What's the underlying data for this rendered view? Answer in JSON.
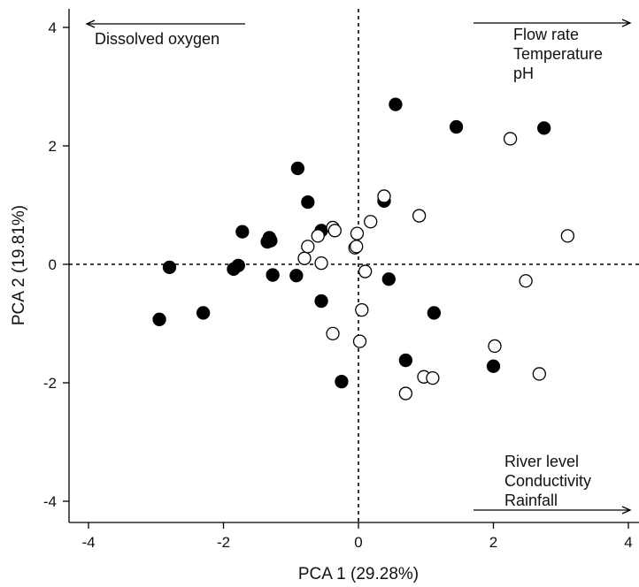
{
  "chart_data": {
    "type": "scatter",
    "title": "",
    "xlabel": "PCA 1 (29.28%)",
    "ylabel": "PCA 2 (19.81%)",
    "xlim": [
      -4.3,
      4.3
    ],
    "ylim": [
      -4.2,
      4.2
    ],
    "x_ticks": [
      -4,
      -2,
      0,
      2,
      4
    ],
    "y_ticks": [
      -4,
      -2,
      0,
      2,
      4
    ],
    "x_tick_labels": [
      "-4",
      "-2",
      "0",
      "2",
      "4"
    ],
    "y_tick_labels": [
      "-4",
      "-2",
      "0",
      "2",
      "4"
    ],
    "reference_lines": {
      "x": 0,
      "y": 0,
      "style": "dashed"
    },
    "grid": false,
    "series": [
      {
        "marker": "filled-circle",
        "color": "#000000",
        "points": [
          [
            0.55,
            2.7
          ],
          [
            1.45,
            2.32
          ],
          [
            2.75,
            2.3
          ],
          [
            -0.9,
            1.62
          ],
          [
            -0.75,
            1.05
          ],
          [
            0.38,
            1.07
          ],
          [
            -1.72,
            0.55
          ],
          [
            -1.32,
            0.45
          ],
          [
            -1.35,
            0.38
          ],
          [
            -1.3,
            0.4
          ],
          [
            -0.55,
            0.57
          ],
          [
            -2.8,
            -0.05
          ],
          [
            -1.85,
            -0.08
          ],
          [
            -1.78,
            -0.02
          ],
          [
            -1.27,
            -0.18
          ],
          [
            -0.92,
            -0.19
          ],
          [
            0.45,
            -0.25
          ],
          [
            -2.95,
            -0.93
          ],
          [
            -2.3,
            -0.82
          ],
          [
            -0.55,
            -0.62
          ],
          [
            1.12,
            -0.82
          ],
          [
            0.7,
            -1.62
          ],
          [
            2.0,
            -1.72
          ],
          [
            -0.25,
            -1.98
          ]
        ]
      },
      {
        "marker": "open-circle",
        "color": "#000000",
        "points": [
          [
            2.25,
            2.12
          ],
          [
            0.38,
            1.15
          ],
          [
            0.9,
            0.82
          ],
          [
            -0.38,
            0.62
          ],
          [
            -0.35,
            0.57
          ],
          [
            -0.6,
            0.48
          ],
          [
            -0.75,
            0.3
          ],
          [
            -0.02,
            0.52
          ],
          [
            0.18,
            0.72
          ],
          [
            -0.05,
            0.28
          ],
          [
            -0.03,
            0.3
          ],
          [
            3.1,
            0.48
          ],
          [
            -0.8,
            0.1
          ],
          [
            -0.55,
            0.02
          ],
          [
            0.1,
            -0.12
          ],
          [
            2.48,
            -0.28
          ],
          [
            0.05,
            -0.77
          ],
          [
            -0.38,
            -1.17
          ],
          [
            0.02,
            -1.3
          ],
          [
            2.02,
            -1.38
          ],
          [
            0.97,
            -1.9
          ],
          [
            1.1,
            -1.92
          ],
          [
            2.68,
            -1.85
          ],
          [
            0.7,
            -2.18
          ]
        ]
      }
    ]
  },
  "annotations": {
    "top_left": [
      "Dissolved oxygen"
    ],
    "top_right": [
      "Flow rate",
      "Temperature",
      "pH"
    ],
    "bottom_right": [
      "River level",
      "Conductivity",
      "Rainfall"
    ]
  },
  "colors": {
    "ink": "#000000",
    "background": "#ffffff"
  }
}
